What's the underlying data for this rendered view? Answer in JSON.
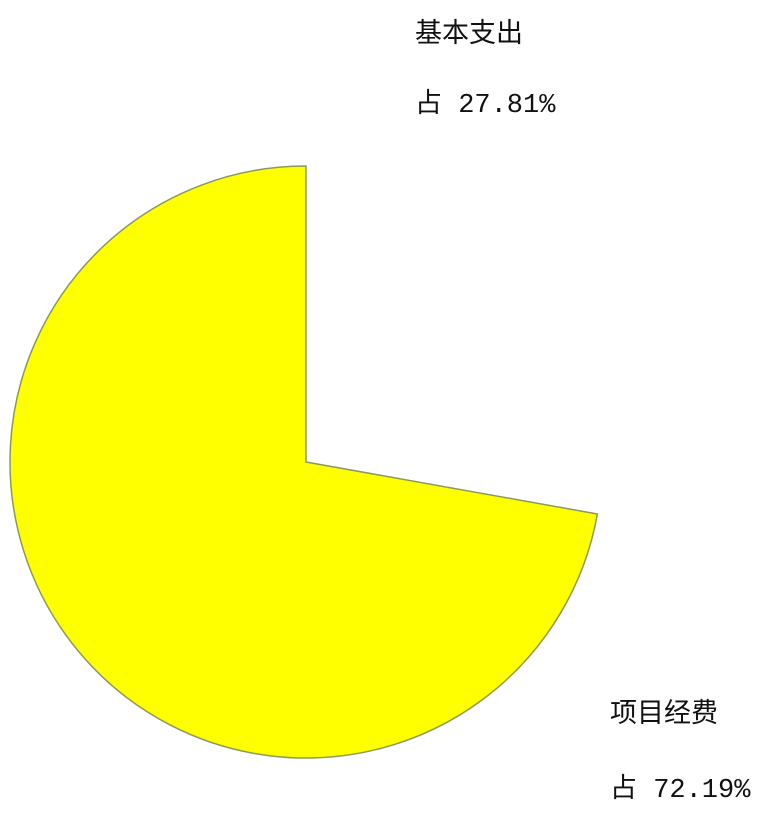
{
  "chart_data": {
    "type": "pie",
    "categories": [
      "基本支出",
      "项目经费"
    ],
    "values": [
      27.81,
      72.19
    ],
    "value_labels": [
      "占 27.81%",
      "占 72.19%"
    ],
    "colors": [
      "#ffffff",
      "#ffff00"
    ]
  }
}
